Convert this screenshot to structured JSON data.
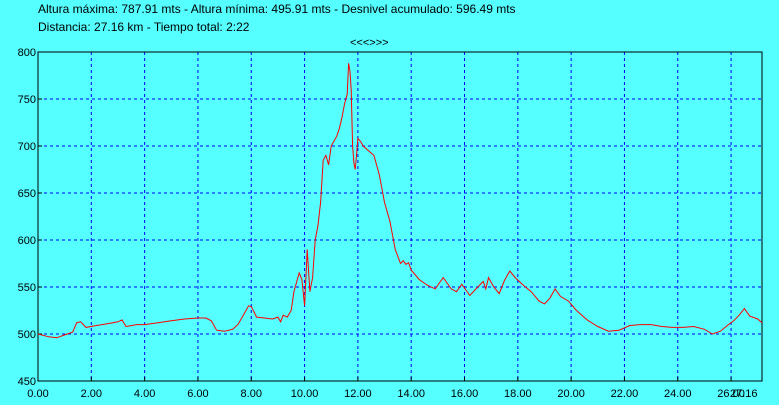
{
  "header": {
    "line1": "Altura máxima: 787.91 mts - Altura mínima: 495.91 mts - Desnivel acumulado: 596.49 mts",
    "line2": "Distancia: 27.16 km - Tiempo total: 2:22",
    "nav_label": "<<<>>>"
  },
  "colors": {
    "background": "#55ffff",
    "grid": "#0000ff",
    "series": "#ff0000",
    "axis": "#000000"
  },
  "chart_data": {
    "type": "line",
    "title": "",
    "xlabel": "",
    "ylabel": "",
    "xlim": [
      0,
      27.16
    ],
    "ylim": [
      450,
      800
    ],
    "grid": true,
    "x_tick_values": [
      0,
      2,
      4,
      6,
      8,
      10,
      12,
      14,
      16,
      18,
      20,
      22,
      24,
      26,
      27.16
    ],
    "x_tick_labels": [
      "0.00",
      "2.00",
      "4.00",
      "6.00",
      "8.00",
      "10.00",
      "12.00",
      "14.00",
      "16.00",
      "18.00",
      "20.00",
      "22.00",
      "24.00",
      "26.00",
      "27.16"
    ],
    "y_tick_values": [
      450,
      500,
      550,
      600,
      650,
      700,
      750,
      800
    ],
    "y_tick_labels": [
      "450",
      "500",
      "550",
      "600",
      "650",
      "700",
      "750",
      "800"
    ],
    "series": [
      {
        "x": [
          0,
          0.4,
          0.7,
          1.0,
          1.3,
          1.45,
          1.6,
          1.8,
          2.2,
          2.6,
          3.0,
          3.15,
          3.3,
          3.7,
          4.0,
          4.5,
          5.0,
          5.5,
          6.0,
          6.3,
          6.5,
          6.7,
          7.0,
          7.3,
          7.5,
          7.7,
          7.9,
          8.0,
          8.2,
          8.5,
          8.8,
          9.0,
          9.1,
          9.2,
          9.35,
          9.5,
          9.6,
          9.8,
          9.9,
          10.0,
          10.1,
          10.2,
          10.3,
          10.4,
          10.5,
          10.6,
          10.7,
          10.8,
          10.9,
          11.0,
          11.1,
          11.2,
          11.3,
          11.4,
          11.5,
          11.6,
          11.65,
          11.7,
          11.75,
          11.8,
          11.85,
          11.9,
          11.95,
          12.0,
          12.1,
          12.2,
          12.4,
          12.6,
          12.8,
          13.0,
          13.2,
          13.4,
          13.6,
          13.7,
          13.8,
          13.9,
          14.0,
          14.3,
          14.6,
          14.9,
          15.2,
          15.5,
          15.7,
          15.9,
          16.2,
          16.5,
          16.7,
          16.8,
          16.9,
          17.1,
          17.3,
          17.5,
          17.7,
          17.9,
          18.2,
          18.5,
          18.8,
          19.0,
          19.2,
          19.4,
          19.6,
          19.9,
          20.2,
          20.6,
          21.0,
          21.4,
          21.8,
          22.2,
          22.6,
          23.0,
          23.4,
          23.8,
          24.2,
          24.6,
          25.0,
          25.3,
          25.6,
          25.9,
          26.1,
          26.3,
          26.5,
          26.7,
          27.0,
          27.16
        ],
        "values": [
          500,
          497,
          496,
          499,
          502,
          512,
          513,
          507,
          509,
          511,
          513,
          515,
          508,
          510,
          510,
          512,
          514,
          516,
          517,
          517,
          514,
          504,
          503,
          505,
          510,
          520,
          530,
          529,
          518,
          517,
          516,
          518,
          513,
          520,
          518,
          525,
          545,
          565,
          558,
          530,
          590,
          545,
          560,
          600,
          615,
          640,
          685,
          690,
          680,
          700,
          705,
          710,
          718,
          730,
          745,
          755,
          788,
          780,
          760,
          700,
          682,
          675,
          690,
          708,
          705,
          700,
          695,
          690,
          670,
          640,
          620,
          590,
          575,
          578,
          574,
          576,
          568,
          558,
          552,
          548,
          560,
          548,
          545,
          553,
          541,
          550,
          556,
          548,
          560,
          550,
          543,
          557,
          567,
          560,
          552,
          545,
          535,
          532,
          538,
          548,
          540,
          535,
          525,
          515,
          508,
          503,
          504,
          509,
          510,
          510,
          508,
          507,
          507,
          508,
          505,
          500,
          503,
          510,
          514,
          520,
          527,
          519,
          516,
          512
        ]
      }
    ]
  }
}
